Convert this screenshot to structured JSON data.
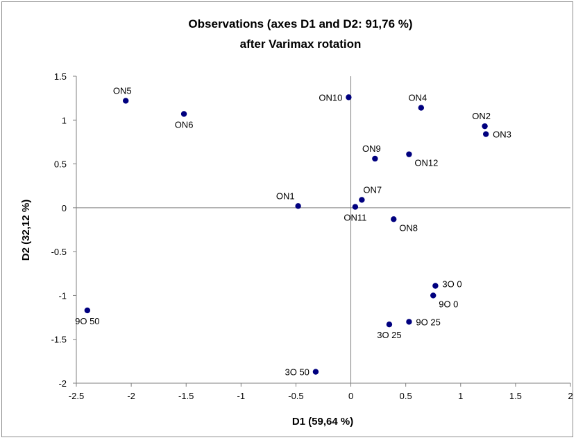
{
  "chart_data": {
    "type": "scatter",
    "title_line1": "Observations (axes D1 and D2: 91,76 %)",
    "title_line2": "after Varimax rotation",
    "xlabel": "D1 (59,64 %)",
    "ylabel": "D2 (32,12 %)",
    "xlim": [
      -2.5,
      2
    ],
    "ylim": [
      -2,
      1.5
    ],
    "x_ticks": [
      -2.5,
      -2,
      -1.5,
      -1,
      -0.5,
      0,
      0.5,
      1,
      1.5,
      2
    ],
    "y_ticks": [
      -2,
      -1.5,
      -1,
      -0.5,
      0,
      0.5,
      1,
      1.5
    ],
    "x_tick_labels": [
      "-2.5",
      "-2",
      "-1.5",
      "-1",
      "-0.5",
      "0",
      "0.5",
      "1",
      "1.5",
      "2"
    ],
    "y_tick_labels": [
      "-2",
      "-1.5",
      "-1",
      "-0.5",
      "0",
      "0.5",
      "1",
      "1.5"
    ],
    "marker_color": "#00007f",
    "points": [
      {
        "label": "ON5",
        "x": -2.05,
        "y": 1.22,
        "label_pos": "above"
      },
      {
        "label": "ON6",
        "x": -1.52,
        "y": 1.07,
        "label_pos": "below"
      },
      {
        "label": "ON10",
        "x": -0.02,
        "y": 1.26,
        "label_pos": "left"
      },
      {
        "label": "ON4",
        "x": 0.64,
        "y": 1.14,
        "label_pos": "above"
      },
      {
        "label": "ON2",
        "x": 1.22,
        "y": 0.93,
        "label_pos": "above"
      },
      {
        "label": "ON3",
        "x": 1.23,
        "y": 0.84,
        "label_pos": "right"
      },
      {
        "label": "ON9",
        "x": 0.22,
        "y": 0.56,
        "label_pos": "above"
      },
      {
        "label": "ON12",
        "x": 0.53,
        "y": 0.61,
        "label_pos": "right-below"
      },
      {
        "label": "ON1",
        "x": -0.48,
        "y": 0.02,
        "label_pos": "above-left"
      },
      {
        "label": "ON7",
        "x": 0.1,
        "y": 0.09,
        "label_pos": "above-right"
      },
      {
        "label": "ON11",
        "x": 0.04,
        "y": 0.01,
        "label_pos": "below"
      },
      {
        "label": "ON8",
        "x": 0.39,
        "y": -0.13,
        "label_pos": "right-below"
      },
      {
        "label": "3O 0",
        "x": 0.77,
        "y": -0.89,
        "label_pos": "right-up"
      },
      {
        "label": "9O 0",
        "x": 0.75,
        "y": -1.0,
        "label_pos": "right-below"
      },
      {
        "label": "9O 25",
        "x": 0.53,
        "y": -1.3,
        "label_pos": "right"
      },
      {
        "label": "3O 25",
        "x": 0.35,
        "y": -1.33,
        "label_pos": "below"
      },
      {
        "label": "9O 50",
        "x": -2.4,
        "y": -1.17,
        "label_pos": "below"
      },
      {
        "label": "3O 50",
        "x": -0.32,
        "y": -1.87,
        "label_pos": "left"
      }
    ]
  }
}
